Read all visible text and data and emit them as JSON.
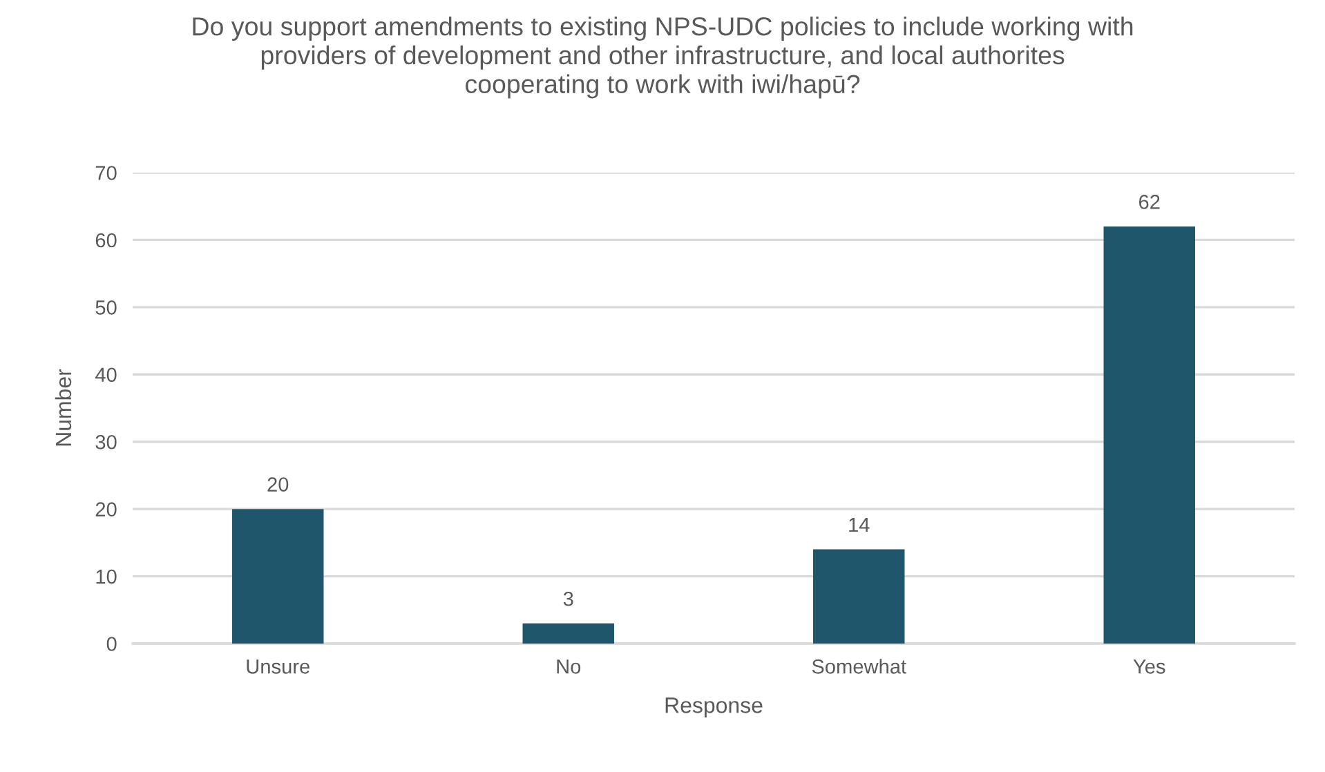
{
  "chart_data": {
    "type": "bar",
    "title": "Do you support amendments to existing NPS-UDC policies to include working with\nproviders of development and other infrastructure, and local authorites\ncooperating to work with iwi/hapū?",
    "xlabel": "Response",
    "ylabel": "Number",
    "categories": [
      "Unsure",
      "No",
      "Somewhat",
      "Yes"
    ],
    "values": [
      20,
      3,
      14,
      62
    ],
    "color": "#1f566b",
    "ylim": [
      0,
      70
    ],
    "yticks": [
      0,
      10,
      20,
      30,
      40,
      50,
      60,
      70
    ],
    "grid": "y",
    "data_labels": true,
    "legend": false
  }
}
